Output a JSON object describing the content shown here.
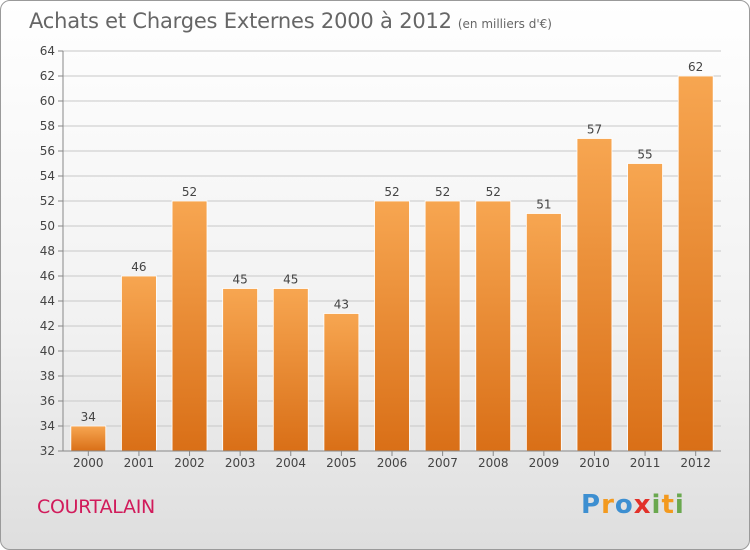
{
  "title": "Achats et Charges Externes 2000 à 2012",
  "unit": "(en milliers d'€)",
  "town": "COURTALAIN",
  "logo": [
    "P",
    "r",
    "o",
    "x",
    "i",
    "t",
    "i"
  ],
  "logo_colors": [
    "#3d8fd1",
    "#f39a1f",
    "#3d8fd1",
    "#e2312a",
    "#6aa84f",
    "#f39a1f",
    "#6aa84f"
  ],
  "colors": {
    "bar_top": "#f7a651",
    "bar_bottom": "#d96f17",
    "grid": "#c8c8c8",
    "axis_text": "#444444"
  },
  "chart_data": {
    "type": "bar",
    "categories": [
      "2000",
      "2001",
      "2002",
      "2003",
      "2004",
      "2005",
      "2006",
      "2007",
      "2008",
      "2009",
      "2010",
      "2011",
      "2012"
    ],
    "values": [
      34,
      46,
      52,
      45,
      45,
      43,
      52,
      52,
      52,
      51,
      57,
      55,
      62
    ],
    "ylim": [
      32,
      64
    ],
    "ytick_step": 2,
    "grid": true
  }
}
